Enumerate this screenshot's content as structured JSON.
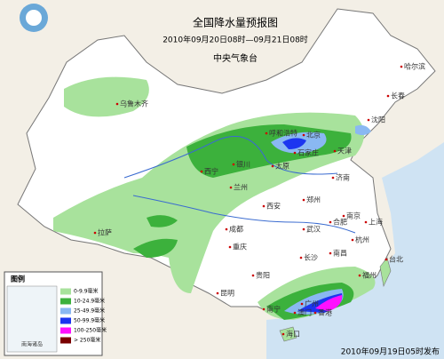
{
  "header": {
    "title": "全国降水量预报图",
    "subtitle": "2010年09月20日08时—09月21日08时",
    "issuer": "中央气象台"
  },
  "legend": {
    "title": "图例",
    "items": [
      {
        "label": "0-9.9毫米",
        "color": "#a8e29c"
      },
      {
        "label": "10-24.9毫米",
        "color": "#3cb13c"
      },
      {
        "label": "25-49.9毫米",
        "color": "#8ab8f2"
      },
      {
        "label": "50-99.9毫米",
        "color": "#1c35f0"
      },
      {
        "label": "100-250毫米",
        "color": "#ff10ff"
      },
      {
        "label": "> 250毫米",
        "color": "#7a0000"
      }
    ]
  },
  "inset": {
    "label": "南海诸岛"
  },
  "cities": [
    "乌鲁木齐",
    "哈尔滨",
    "长春",
    "沈阳",
    "呼和浩特",
    "北京",
    "天津",
    "石家庄",
    "太原",
    "银川",
    "西宁",
    "兰州",
    "济南",
    "郑州",
    "西安",
    "合肥",
    "南京",
    "上海",
    "武汉",
    "杭州",
    "成都",
    "重庆",
    "拉萨",
    "长沙",
    "南昌",
    "福州",
    "贵阳",
    "昆明",
    "南宁",
    "广州",
    "香港",
    "澳门",
    "台北",
    "海口"
  ],
  "footer": {
    "issued": "2010年09月19日05时发布"
  }
}
